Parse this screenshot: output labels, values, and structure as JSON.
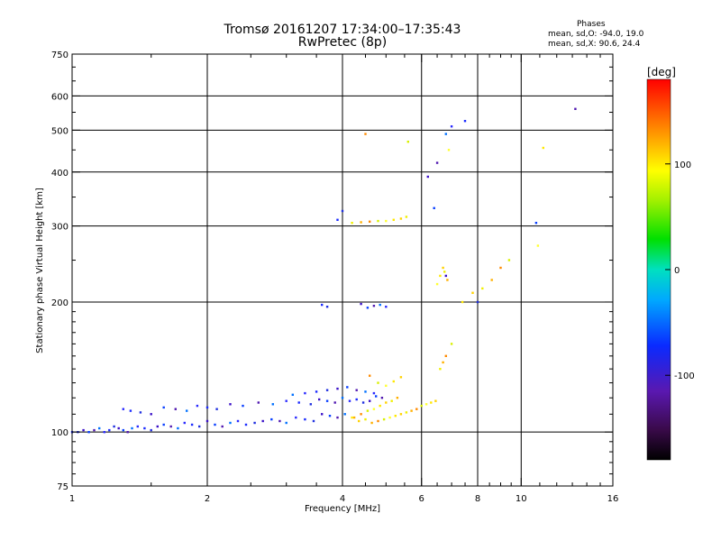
{
  "header": {
    "title_line1": "Tromsø 20161207 17:34:00–17:35:43",
    "title_line2": "RwPretec (8p)",
    "phases_title": "Phases",
    "phases_o": "mean, sd,O: -94.0, 19.0",
    "phases_x": "mean, sd,X:  90.6, 24.4"
  },
  "chart_data": {
    "type": "scatter",
    "title": "Tromsø 20161207 17:34:00–17:35:43",
    "subtitle": "RwPretec (8p)",
    "xlabel": "Frequency [MHz]",
    "ylabel": "Stationary phase Virtual Height [km]",
    "x_scale": "log",
    "y_scale": "log",
    "xlim": [
      1,
      16
    ],
    "ylim": [
      75,
      750
    ],
    "x_ticks": [
      1,
      2,
      4,
      6,
      8,
      10,
      16
    ],
    "y_ticks": [
      75,
      100,
      200,
      300,
      400,
      500,
      600,
      750
    ],
    "x_gridlines": [
      2,
      4,
      6,
      8,
      10
    ],
    "y_gridlines": [
      100,
      200,
      300,
      400,
      500,
      600
    ],
    "grid": true,
    "colorbar": {
      "label": "[deg]",
      "range": [
        -180,
        180
      ],
      "ticks": [
        -100,
        0,
        100
      ],
      "colormap": "rainbow (black-purple-blue-cyan-green-yellow-orange-red)"
    },
    "annotations": {
      "phases_title": "Phases",
      "phases_o": "mean, sd,O: -94.0, 19.0",
      "phases_x": "mean, sd,X:  90.6, 24.4"
    },
    "series": [
      {
        "name": "O",
        "x": [
          1.0,
          1.03,
          1.06,
          1.09,
          1.12,
          1.15,
          1.18,
          1.21,
          1.24,
          1.27,
          1.3,
          1.33,
          1.36,
          1.4,
          1.45,
          1.5,
          1.55,
          1.6,
          1.66,
          1.72,
          1.78,
          1.85,
          1.92,
          2.0,
          2.08,
          2.16,
          2.25,
          2.34,
          2.44,
          2.55,
          2.66,
          2.78,
          2.9,
          3.0,
          3.15,
          3.3,
          3.45,
          3.6,
          3.75,
          3.9,
          4.05,
          1.3,
          1.35,
          1.42,
          1.5,
          1.6,
          1.7,
          1.8,
          1.9,
          2.0,
          2.1,
          2.25,
          2.4,
          2.6,
          2.8,
          3.0,
          3.2,
          3.4,
          3.55,
          3.7,
          3.85,
          4.0,
          4.15,
          4.3,
          4.45,
          4.6,
          4.75,
          4.9,
          3.1,
          3.3,
          3.5,
          3.7,
          3.9,
          4.1,
          4.3,
          4.5,
          4.7,
          3.6,
          3.7,
          4.4,
          4.55,
          4.7,
          4.85,
          5.0,
          3.9,
          4.0,
          6.2,
          6.4,
          6.5,
          6.8,
          7.0,
          7.5,
          8.0,
          6.8,
          10.8,
          13.2
        ],
        "y": [
          100,
          100,
          101,
          100,
          101,
          102,
          100,
          101,
          103,
          102,
          101,
          100,
          102,
          103,
          102,
          101,
          103,
          104,
          103,
          102,
          105,
          104,
          103,
          106,
          104,
          103,
          105,
          106,
          104,
          105,
          106,
          107,
          106,
          105,
          108,
          107,
          106,
          110,
          109,
          108,
          110,
          113,
          112,
          111,
          110,
          114,
          113,
          112,
          115,
          114,
          113,
          116,
          115,
          117,
          116,
          118,
          117,
          116,
          119,
          118,
          117,
          120,
          118,
          119,
          117,
          118,
          121,
          120,
          122,
          123,
          124,
          125,
          126,
          127,
          125,
          124,
          123,
          197,
          195,
          198,
          194,
          196,
          197,
          195,
          310,
          325,
          390,
          330,
          420,
          490,
          510,
          525,
          200,
          230,
          305,
          560
        ]
      },
      {
        "name": "X",
        "x": [
          4.2,
          4.35,
          4.5,
          4.65,
          4.8,
          4.95,
          5.1,
          5.25,
          5.4,
          5.55,
          5.7,
          5.85,
          6.0,
          6.15,
          6.3,
          6.45,
          4.2,
          4.4,
          4.6,
          4.8,
          5.0,
          5.2,
          5.4,
          5.55,
          4.25,
          4.4,
          4.55,
          4.7,
          4.85,
          5.0,
          5.15,
          5.3,
          4.6,
          4.8,
          5.0,
          5.2,
          5.4,
          6.6,
          6.7,
          6.8,
          7.0,
          6.5,
          6.6,
          6.7,
          6.75,
          6.85,
          4.5,
          5.6,
          6.9,
          7.4,
          7.8,
          8.2,
          8.6,
          9.0,
          9.4,
          10.9,
          11.2
        ],
        "y": [
          108,
          106,
          107,
          105,
          106,
          107,
          108,
          109,
          110,
          111,
          112,
          113,
          115,
          116,
          117,
          118,
          305,
          306,
          307,
          308,
          308,
          310,
          312,
          315,
          108,
          110,
          112,
          113,
          115,
          117,
          118,
          120,
          135,
          130,
          128,
          131,
          134,
          140,
          145,
          150,
          160,
          220,
          230,
          240,
          235,
          225,
          490,
          470,
          450,
          200,
          210,
          215,
          225,
          240,
          250,
          270,
          455
        ]
      }
    ]
  }
}
